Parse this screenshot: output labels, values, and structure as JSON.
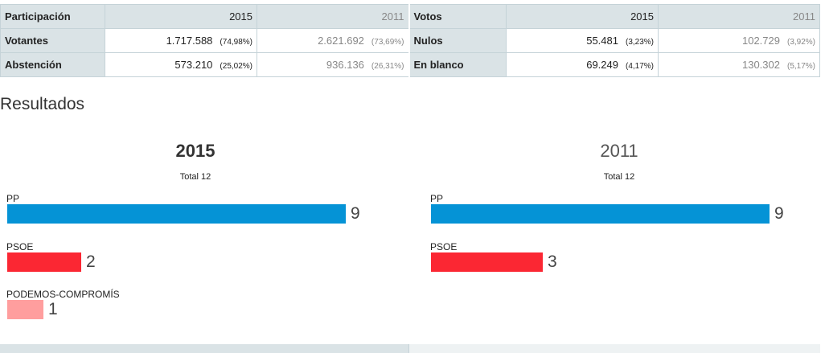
{
  "participation": {
    "header": {
      "label": "Participación",
      "year_a": "2015",
      "year_b": "2011"
    },
    "rows": [
      {
        "label": "Votantes",
        "a_value": "1.717.588",
        "a_pct": "(74,98%)",
        "b_value": "2.621.692",
        "b_pct": "(73,69%)"
      },
      {
        "label": "Abstención",
        "a_value": "573.210",
        "a_pct": "(25,02%)",
        "b_value": "936.136",
        "b_pct": "(26,31%)"
      }
    ]
  },
  "votes": {
    "header": {
      "label": "Votos",
      "year_a": "2015",
      "year_b": "2011"
    },
    "rows": [
      {
        "label": "Nulos",
        "a_value": "55.481",
        "a_pct": "(3,23%)",
        "b_value": "102.729",
        "b_pct": "(3,92%)"
      },
      {
        "label": "En blanco",
        "a_value": "69.249",
        "a_pct": "(4,17%)",
        "b_value": "130.302",
        "b_pct": "(5,17%)"
      }
    ]
  },
  "results": {
    "title": "Resultados",
    "panels": [
      {
        "year": "2015",
        "total_label": "Total 12",
        "total_seats": 12,
        "parties": [
          {
            "name": "PP",
            "seats": 9,
            "color": "#0593d6"
          },
          {
            "name": "PSOE",
            "seats": 2,
            "color": "#fb2733"
          },
          {
            "name": "PODEMOS-COMPROMÍS",
            "seats": 1,
            "color": "#ff9e9e"
          }
        ]
      },
      {
        "year": "2011",
        "total_label": "Total 12",
        "total_seats": 12,
        "parties": [
          {
            "name": "PP",
            "seats": 9,
            "color": "#0593d6"
          },
          {
            "name": "PSOE",
            "seats": 3,
            "color": "#fb2733"
          }
        ]
      }
    ]
  }
}
